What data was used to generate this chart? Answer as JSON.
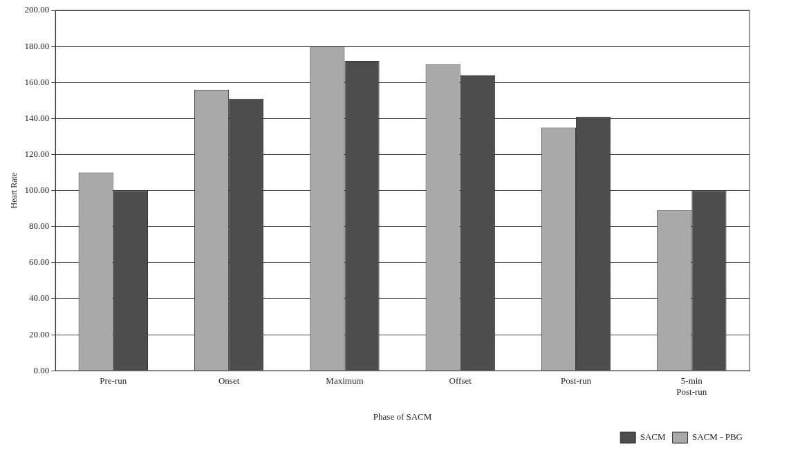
{
  "chart_data": {
    "type": "bar",
    "xlabel": "Phase of SACM",
    "ylabel": "Heart Rate",
    "categories": [
      "Pre-run",
      "Onset",
      "Maximum",
      "Offset",
      "Post-run",
      "5-min\nPost-run"
    ],
    "series": [
      {
        "name": "SACM - PBG",
        "color": "#a9a9a9",
        "values": [
          110,
          156,
          180,
          170,
          135,
          89
        ]
      },
      {
        "name": "SACM",
        "color": "#4d4d4d",
        "values": [
          100,
          151,
          172,
          164,
          141,
          100
        ]
      }
    ],
    "ylim": [
      0,
      200
    ],
    "yticks": [
      {
        "value": 0,
        "label": "0.00"
      },
      {
        "value": 20,
        "label": "20.00"
      },
      {
        "value": 40,
        "label": "40.00"
      },
      {
        "value": 60,
        "label": "60.00"
      },
      {
        "value": 80,
        "label": "80.00"
      },
      {
        "value": 100,
        "label": "100.00"
      },
      {
        "value": 120,
        "label": "120.00"
      },
      {
        "value": 140,
        "label": "140.00"
      },
      {
        "value": 160,
        "label": "160.00"
      },
      {
        "value": 180,
        "label": "180.00"
      },
      {
        "value": 200,
        "label": "200.00"
      }
    ],
    "grid": "y",
    "legend": "bottom right"
  }
}
